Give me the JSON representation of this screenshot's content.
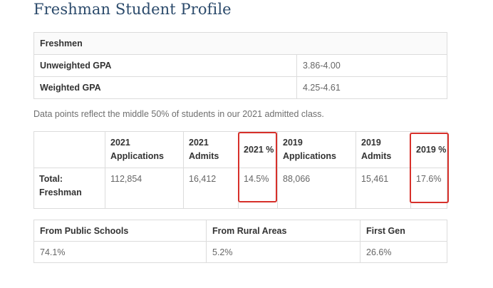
{
  "title": "Freshman Student Profile",
  "gpa": {
    "header": "Freshmen",
    "rows": [
      {
        "label": "Unweighted GPA",
        "value": "3.86-4.00"
      },
      {
        "label": "Weighted GPA",
        "value": "4.25-4.61"
      }
    ]
  },
  "note": "Data points reflect the middle 50% of students in our 2021 admitted class.",
  "admissions": {
    "headers": [
      "",
      "2021 Applications",
      "2021 Admits",
      "2021 %",
      "2019 Applications",
      "2019 Admits",
      "2019 %"
    ],
    "row_label": "Total: Freshman",
    "values": [
      "112,854",
      "16,412",
      "14.5%",
      "88,066",
      "15,461",
      "17.6%"
    ],
    "highlight_color": "#d7302a"
  },
  "demographics": {
    "headers": [
      "From Public Schools",
      "From Rural Areas",
      "First Gen"
    ],
    "values": [
      "74.1%",
      "5.2%",
      "26.6%"
    ]
  }
}
